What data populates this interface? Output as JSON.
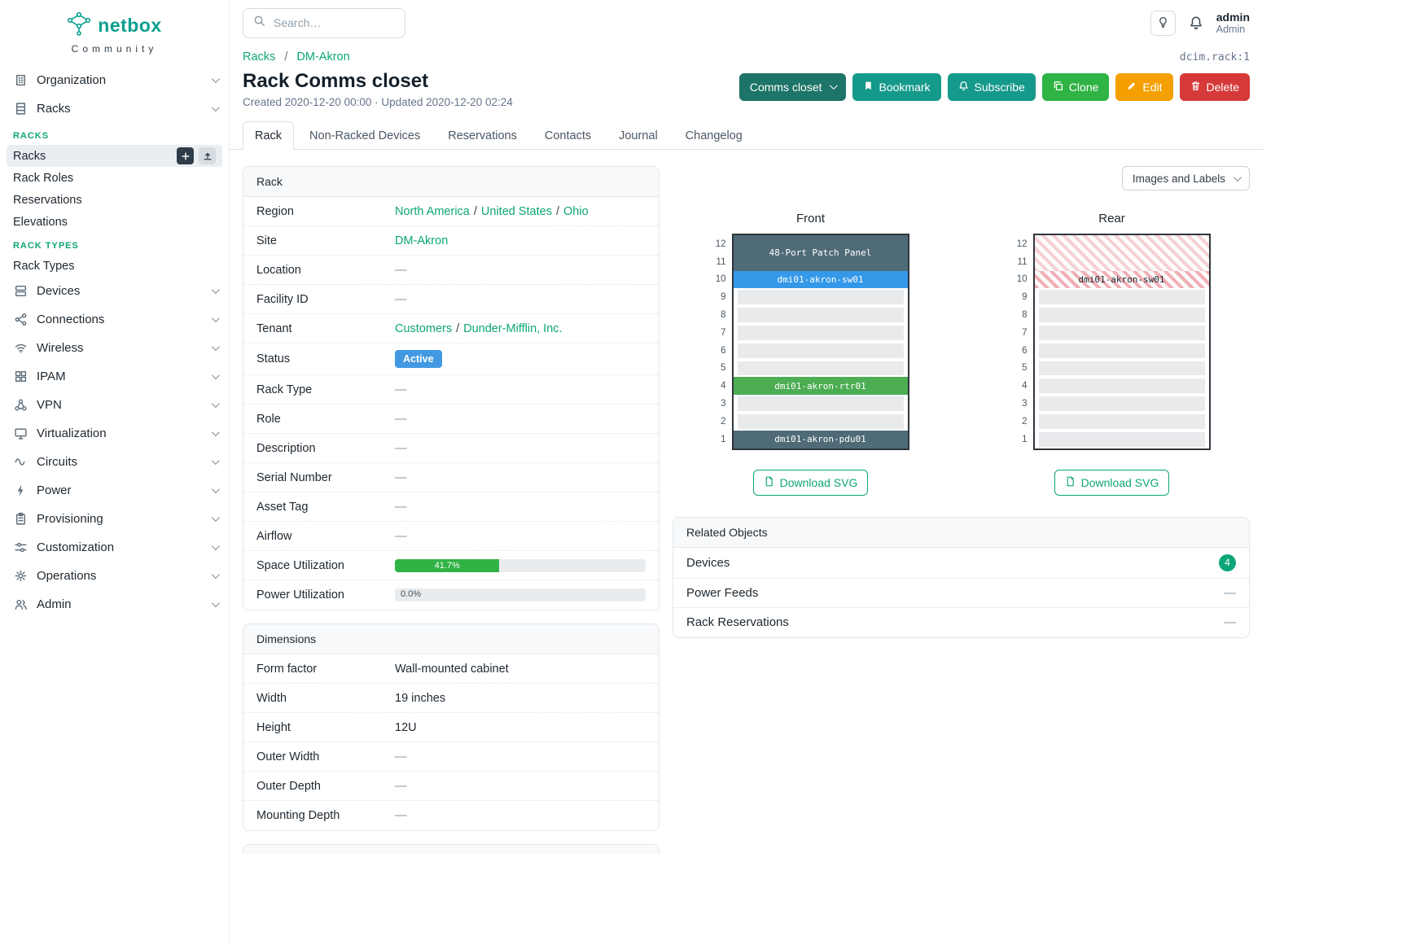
{
  "sidebar": {
    "brand": "netbox",
    "community": "Community",
    "menu": [
      {
        "label": "Organization",
        "icon": "building"
      },
      {
        "label": "Racks",
        "icon": "rack",
        "expanded": true,
        "sections": [
          {
            "heading": "RACKS",
            "items": [
              {
                "label": "Racks",
                "active": true,
                "actions": true
              },
              {
                "label": "Rack Roles"
              },
              {
                "label": "Reservations"
              },
              {
                "label": "Elevations"
              }
            ]
          },
          {
            "heading": "RACK TYPES",
            "items": [
              {
                "label": "Rack Types"
              }
            ]
          }
        ]
      },
      {
        "label": "Devices",
        "icon": "devices"
      },
      {
        "label": "Connections",
        "icon": "share"
      },
      {
        "label": "Wireless",
        "icon": "wifi"
      },
      {
        "label": "IPAM",
        "icon": "grid"
      },
      {
        "label": "VPN",
        "icon": "network"
      },
      {
        "label": "Virtualization",
        "icon": "monitor"
      },
      {
        "label": "Circuits",
        "icon": "wave"
      },
      {
        "label": "Power",
        "icon": "bolt"
      },
      {
        "label": "Provisioning",
        "icon": "clipboard"
      },
      {
        "label": "Customization",
        "icon": "sliders"
      },
      {
        "label": "Operations",
        "icon": "gear"
      },
      {
        "label": "Admin",
        "icon": "users"
      }
    ]
  },
  "topbar": {
    "search_placeholder": "Search…",
    "user": {
      "name": "admin",
      "role": "Admin"
    }
  },
  "header": {
    "breadcrumb": [
      "Racks",
      "DM-Akron"
    ],
    "object_ref": "dcim.rack:1",
    "title": "Rack Comms closet",
    "meta": "Created 2020-12-20 00:00 · Updated 2020-12-20 02:24",
    "buttons": {
      "closet": "Comms closet",
      "bookmark": "Bookmark",
      "subscribe": "Subscribe",
      "clone": "Clone",
      "edit": "Edit",
      "delete": "Delete"
    }
  },
  "tabs": [
    {
      "label": "Rack",
      "active": true
    },
    {
      "label": "Non-Racked Devices"
    },
    {
      "label": "Reservations"
    },
    {
      "label": "Contacts"
    },
    {
      "label": "Journal"
    },
    {
      "label": "Changelog"
    }
  ],
  "rack_card": {
    "title": "Rack",
    "rows": [
      {
        "label": "Region",
        "type": "links",
        "links": [
          "North America",
          "United States",
          "Ohio"
        ]
      },
      {
        "label": "Site",
        "type": "links",
        "links": [
          "DM-Akron"
        ]
      },
      {
        "label": "Location",
        "type": "dash"
      },
      {
        "label": "Facility ID",
        "type": "dash"
      },
      {
        "label": "Tenant",
        "type": "links",
        "links": [
          "Customers",
          "Dunder-Mifflin, Inc."
        ]
      },
      {
        "label": "Status",
        "type": "badge",
        "value": "Active",
        "color": "#4299e1"
      },
      {
        "label": "Rack Type",
        "type": "dash"
      },
      {
        "label": "Role",
        "type": "dash"
      },
      {
        "label": "Description",
        "type": "dash"
      },
      {
        "label": "Serial Number",
        "type": "dash"
      },
      {
        "label": "Asset Tag",
        "type": "dash"
      },
      {
        "label": "Airflow",
        "type": "dash"
      },
      {
        "label": "Space Utilization",
        "type": "progress",
        "pct": 41.7,
        "text": "41.7%",
        "color": "#2fb344"
      },
      {
        "label": "Power Utilization",
        "type": "progress",
        "pct": 0,
        "text": "0.0%",
        "color": "#2fb344"
      }
    ]
  },
  "dimensions_card": {
    "title": "Dimensions",
    "rows": [
      {
        "label": "Form factor",
        "value": "Wall-mounted cabinet"
      },
      {
        "label": "Width",
        "value": "19 inches"
      },
      {
        "label": "Height",
        "value": "12U"
      },
      {
        "label": "Outer Width",
        "value": "—"
      },
      {
        "label": "Outer Depth",
        "value": "—"
      },
      {
        "label": "Mounting Depth",
        "value": "—"
      }
    ]
  },
  "elevations": {
    "images_toggle": "Images and Labels",
    "download_label": "Download SVG",
    "units": 12,
    "front": {
      "title": "Front",
      "devices": [
        {
          "name": "48-Port Patch Panel",
          "unit": 12,
          "height": 2,
          "bg": "#4f6b77",
          "fg": "#ffffff"
        },
        {
          "name": "dmi01-akron-sw01",
          "unit": 10,
          "height": 1,
          "bg": "#3598e8",
          "fg": "#ffffff"
        },
        {
          "name": "dmi01-akron-rtr01",
          "unit": 4,
          "height": 1,
          "bg": "#4cad52",
          "fg": "#ffffff"
        },
        {
          "name": "dmi01-akron-pdu01",
          "unit": 1,
          "height": 1,
          "bg": "#4f6b77",
          "fg": "#ffffff"
        }
      ]
    },
    "rear": {
      "title": "Rear",
      "devices": [
        {
          "name": "",
          "unit": 12,
          "height": 2,
          "hatch": "light"
        },
        {
          "name": "dmi01-akron-sw01",
          "unit": 10,
          "height": 1,
          "hatch": "strong",
          "fg": "#1d2730"
        }
      ]
    }
  },
  "related": {
    "title": "Related Objects",
    "rows": [
      {
        "label": "Devices",
        "badge": "4"
      },
      {
        "label": "Power Feeds",
        "value": "—"
      },
      {
        "label": "Rack Reservations",
        "value": "—"
      }
    ]
  },
  "colors": {
    "accent_teal": "#0ca678",
    "status_active_blue": "#4299e1",
    "progress_green": "#2fb344",
    "clone_green": "#2fb344",
    "edit_orange": "#f59f00",
    "delete_red": "#d63939",
    "closet_dark_teal": "#1d7468"
  }
}
